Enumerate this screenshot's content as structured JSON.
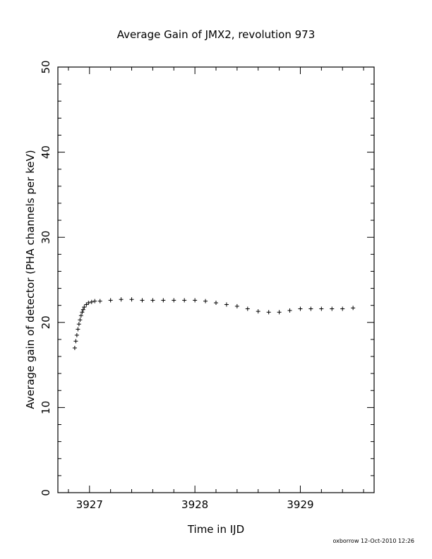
{
  "chart_data": {
    "type": "scatter",
    "title": "Average Gain of JMX2, revolution 973",
    "xlabel": "Time in IJD",
    "ylabel": "Average gain of detector (PHA channels per keV)",
    "xlim": [
      3926.7,
      3929.7
    ],
    "ylim": [
      0,
      50
    ],
    "x_ticks": [
      3927,
      3928,
      3929
    ],
    "y_ticks": [
      0,
      10,
      20,
      30,
      40,
      50
    ],
    "marker": "plus",
    "grid": false,
    "series": [
      {
        "points": [
          [
            3926.86,
            17.0
          ],
          [
            3926.87,
            17.8
          ],
          [
            3926.88,
            18.5
          ],
          [
            3926.89,
            19.2
          ],
          [
            3926.9,
            19.8
          ],
          [
            3926.91,
            20.3
          ],
          [
            3926.92,
            20.8
          ],
          [
            3926.93,
            21.2
          ],
          [
            3926.94,
            21.5
          ],
          [
            3926.95,
            21.8
          ],
          [
            3926.97,
            22.1
          ],
          [
            3926.99,
            22.3
          ],
          [
            3927.02,
            22.4
          ],
          [
            3927.05,
            22.5
          ],
          [
            3927.1,
            22.5
          ],
          [
            3927.2,
            22.6
          ],
          [
            3927.3,
            22.7
          ],
          [
            3927.4,
            22.7
          ],
          [
            3927.5,
            22.6
          ],
          [
            3927.6,
            22.6
          ],
          [
            3927.7,
            22.6
          ],
          [
            3927.8,
            22.6
          ],
          [
            3927.9,
            22.6
          ],
          [
            3928.0,
            22.6
          ],
          [
            3928.1,
            22.5
          ],
          [
            3928.2,
            22.3
          ],
          [
            3928.3,
            22.1
          ],
          [
            3928.4,
            21.9
          ],
          [
            3928.5,
            21.6
          ],
          [
            3928.6,
            21.3
          ],
          [
            3928.7,
            21.2
          ],
          [
            3928.8,
            21.2
          ],
          [
            3928.9,
            21.4
          ],
          [
            3929.0,
            21.6
          ],
          [
            3929.1,
            21.6
          ],
          [
            3929.2,
            21.6
          ],
          [
            3929.3,
            21.6
          ],
          [
            3929.4,
            21.6
          ],
          [
            3929.5,
            21.7
          ]
        ]
      }
    ]
  },
  "footer": {
    "credit": "oxborrow 12-Oct-2010 12:26"
  }
}
